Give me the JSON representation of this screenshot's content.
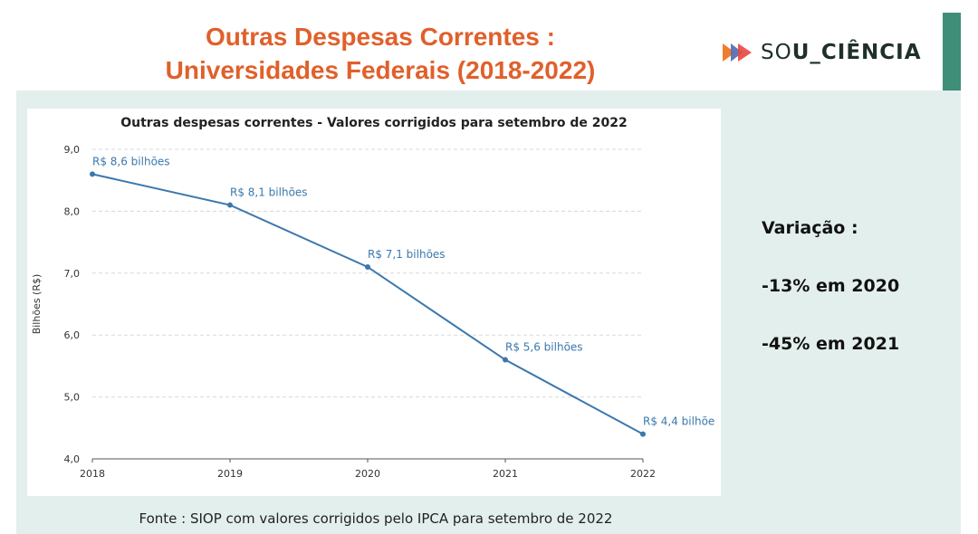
{
  "slide": {
    "title_line1": "Outras Despesas Correntes :",
    "title_line2": "Universidades Federais (2018-2022)",
    "logo_prefix": "SO",
    "logo_suffix": "U_CIÊNCIA",
    "variation_title": "Variação :",
    "variation_items": [
      "-13% em 2020",
      "-45% em 2021"
    ],
    "footer": "Fonte : SIOP com valores corrigidos pelo IPCA para setembro de 2022"
  },
  "colors": {
    "title": "#e0602b",
    "line": "#3b78ad",
    "panel_bg": "#e3efec",
    "accent_bar": "#3e8e78",
    "grid": "#d8d8d8"
  },
  "chart_data": {
    "type": "line",
    "title": "Outras despesas correntes - Valores corrigidos para setembro de 2022",
    "xlabel": "",
    "ylabel": "Bilhões (R$)",
    "x": [
      "2018",
      "2019",
      "2020",
      "2021",
      "2022"
    ],
    "series": [
      {
        "values": [
          8.6,
          8.1,
          7.1,
          5.6,
          4.4
        ],
        "labels": [
          "R$ 8,6 bilhões",
          "R$ 8,1 bilhões",
          "R$ 7,1 bilhões",
          "R$ 5,6 bilhões",
          "R$ 4,4 bilhõe"
        ]
      }
    ],
    "ylim": [
      4.0,
      9.0
    ],
    "yticks": [
      4.0,
      5.0,
      6.0,
      7.0,
      8.0,
      9.0
    ],
    "ytick_labels": [
      "4,0",
      "5,0",
      "6,0",
      "7,0",
      "8,0",
      "9,0"
    ],
    "grid": true,
    "legend": "none"
  }
}
